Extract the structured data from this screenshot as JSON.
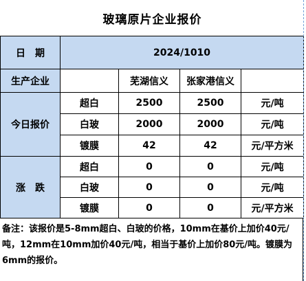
{
  "title": "玻璃原片企业报价",
  "date_row": {
    "label": "日　期",
    "value": "2024/1010"
  },
  "company_row": {
    "label": "生产企业",
    "companies": [
      "",
      "芜湖信义",
      "张家港信义"
    ],
    "unit_header": ""
  },
  "today_section": {
    "label": "今日报价",
    "rows": [
      {
        "product": "超白",
        "values": [
          "2500",
          "2500"
        ],
        "unit": "元/吨"
      },
      {
        "product": "白玻",
        "values": [
          "2000",
          "2000"
        ],
        "unit": "元/吨"
      },
      {
        "product": "镀膜",
        "values": [
          "42",
          "42"
        ],
        "unit": "元/平方米"
      }
    ]
  },
  "change_section": {
    "label": "涨　跌",
    "rows": [
      {
        "product": "超白",
        "values": [
          "0",
          "0"
        ],
        "unit": "元/吨"
      },
      {
        "product": "白玻",
        "values": [
          "0",
          "0"
        ],
        "unit": "元/吨"
      },
      {
        "product": "镀膜",
        "values": [
          "0",
          "0"
        ],
        "unit": "元/平方米"
      }
    ]
  },
  "note": "备注：该报价是5-8mm超白、白玻的价格，10mm在基价上加价40元/吨，12mm在10mm加价40元/吨，相当于基价上加价80元/吨。镀膜为6mm的报价。",
  "colors": {
    "label_fill": "#c5d9f1",
    "border": "#000000"
  }
}
